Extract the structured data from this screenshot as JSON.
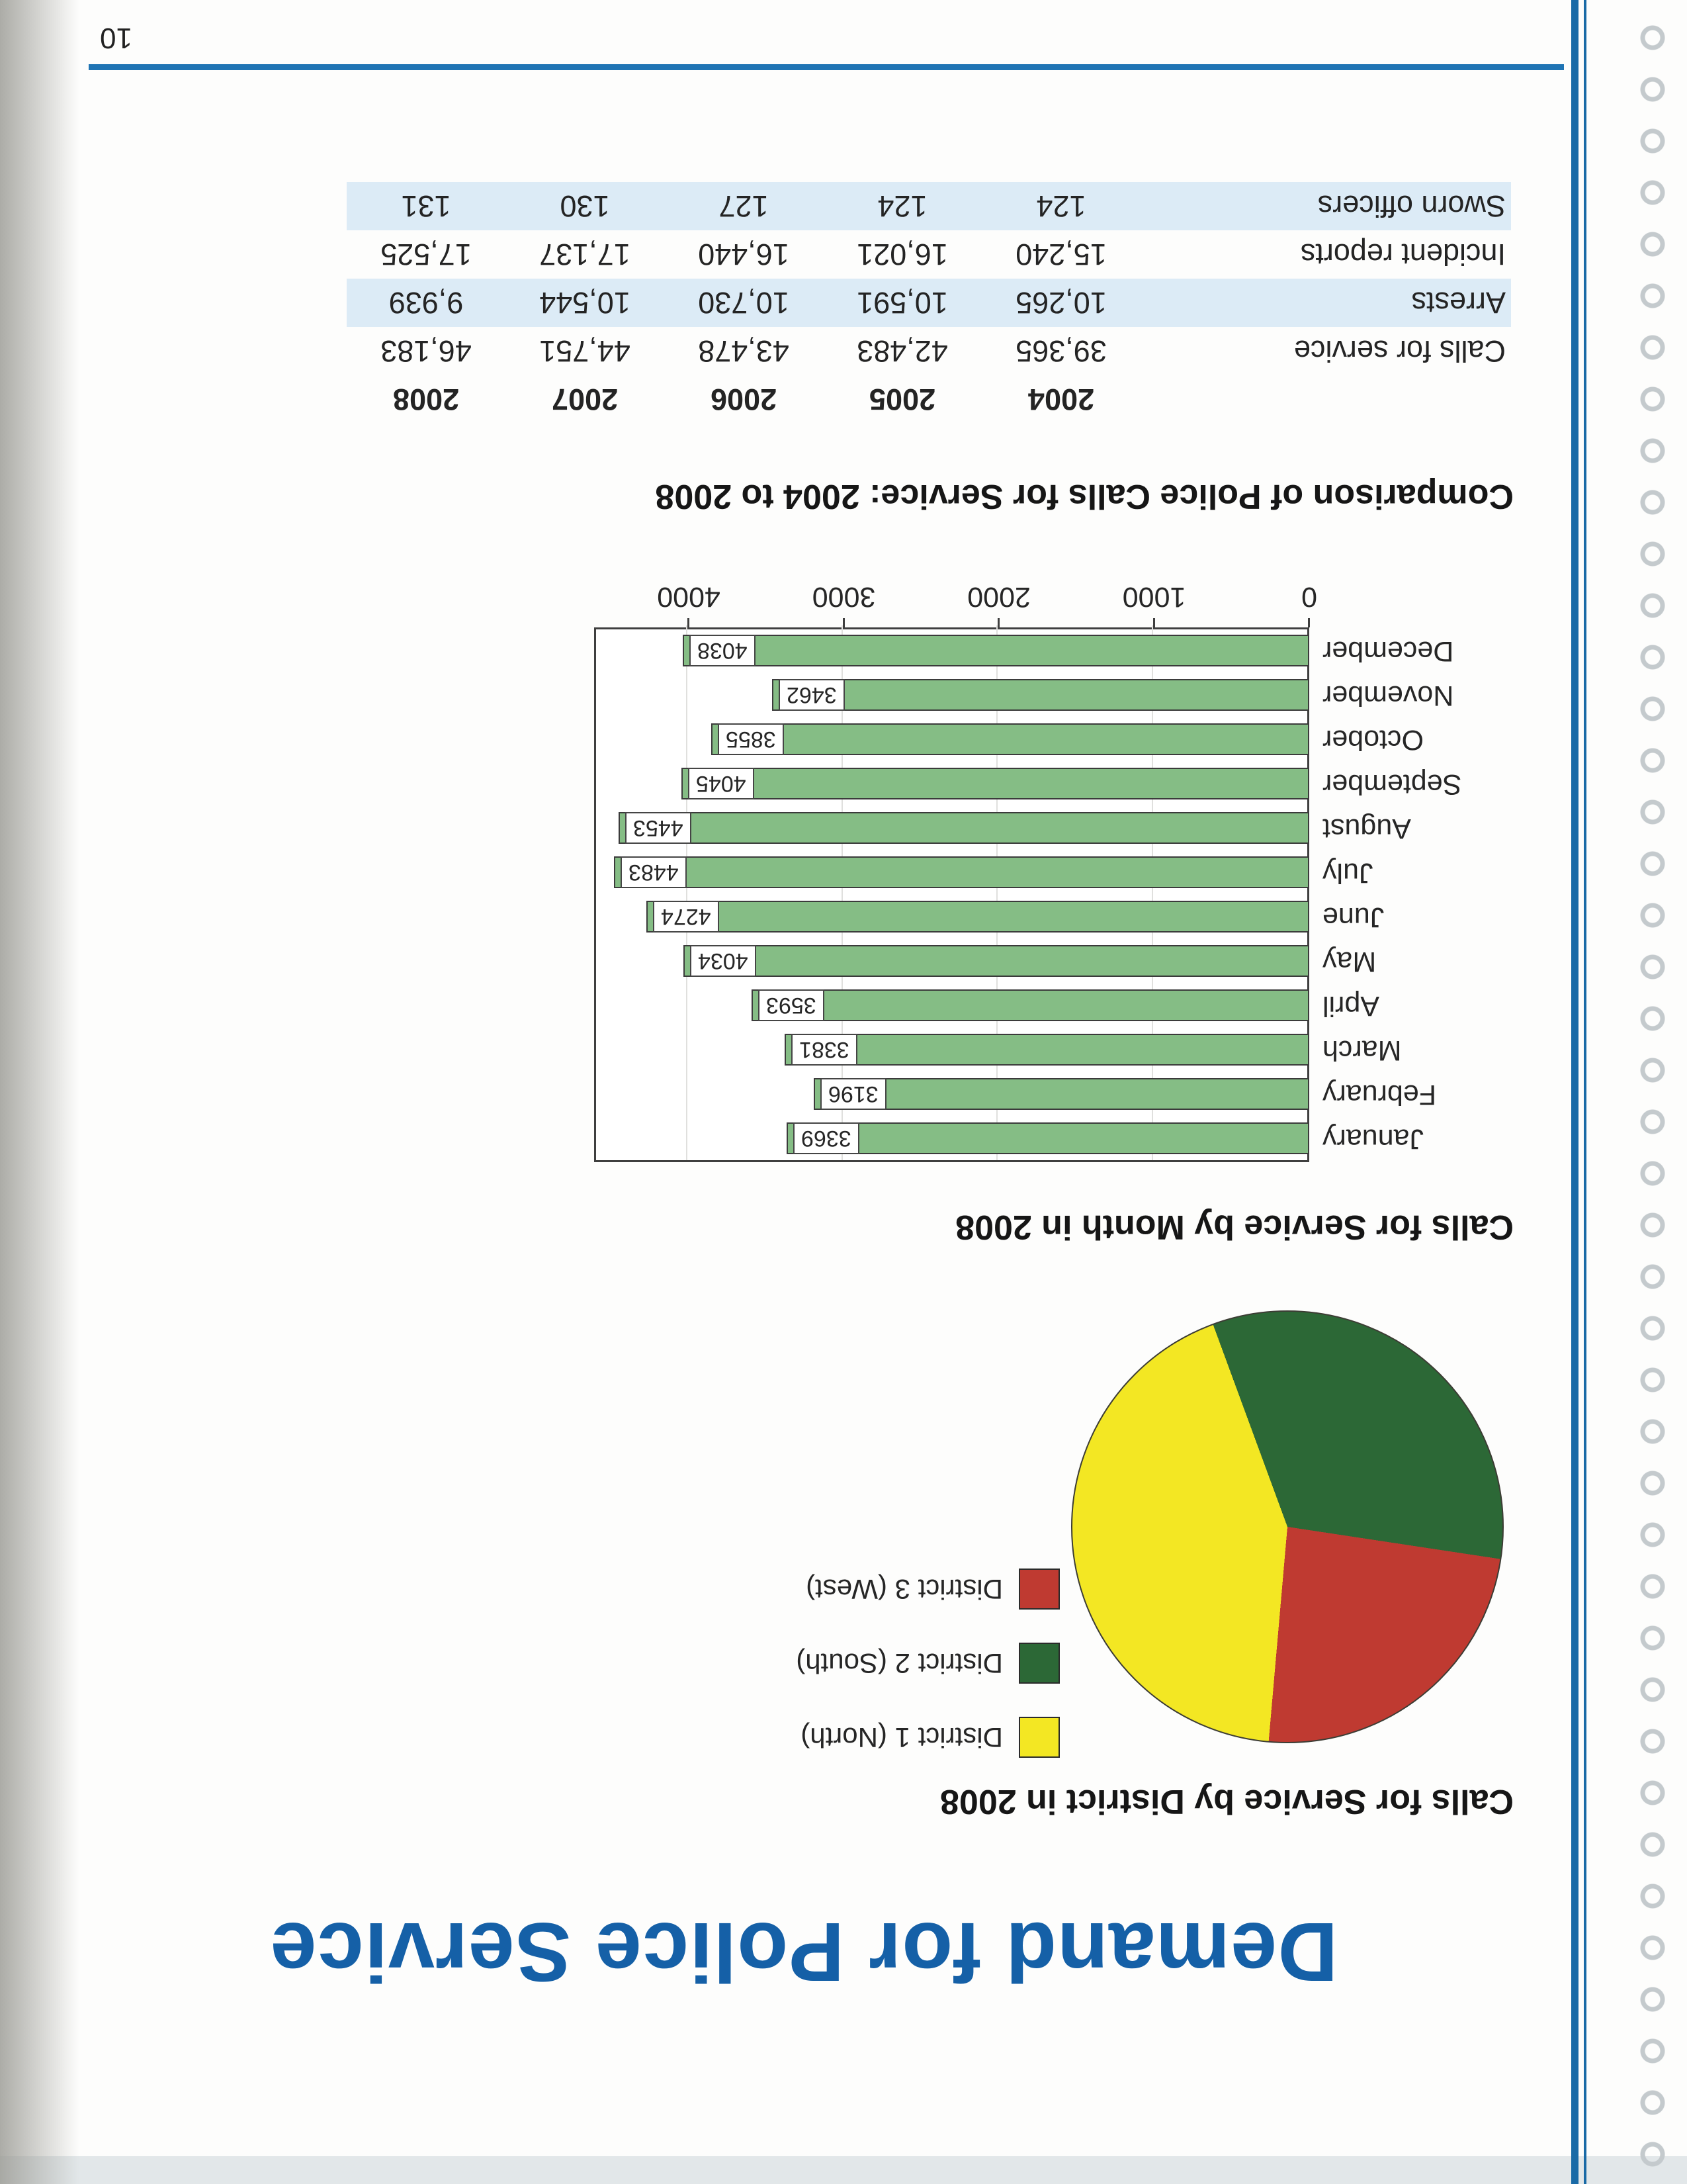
{
  "page_number": "10",
  "title": "Demand for Police Service",
  "accent_colors": {
    "title_blue": "#1560a7",
    "rule_blue": "#1f74b4",
    "table_band_blue": "#dcebf6",
    "bar_green": "#85bd85"
  },
  "chart_data": [
    {
      "type": "pie",
      "title": "Calls for Service by District in 2008",
      "labels": [
        "District 1 (North)",
        "District 2 (South)",
        "District 3 (West)"
      ],
      "colors": [
        "#f3e723",
        "#2c6836",
        "#bf3a31"
      ],
      "values_percent_est": [
        43,
        33,
        24
      ],
      "start_angle_deg": 5,
      "legend_position": "right"
    },
    {
      "type": "bar",
      "orientation": "horizontal",
      "title": "Calls for Service by Month in 2008",
      "categories": [
        "January",
        "February",
        "March",
        "April",
        "May",
        "June",
        "July",
        "August",
        "September",
        "October",
        "November",
        "December"
      ],
      "values": [
        3369,
        3196,
        3381,
        3593,
        4034,
        4274,
        4483,
        4453,
        4045,
        3855,
        3462,
        4038
      ],
      "ticks": [
        0,
        1000,
        2000,
        3000,
        4000
      ],
      "xlim": [
        0,
        4610
      ],
      "bar_color": "#85bd85",
      "grid": true,
      "value_labels": true
    },
    {
      "type": "table",
      "title": "Comparison of Police Calls for Service: 2004 to 2008",
      "columns": [
        "",
        "2004",
        "2005",
        "2006",
        "2007",
        "2008"
      ],
      "rows": [
        [
          "Calls for service",
          "39,365",
          "42,483",
          "43,478",
          "44,751",
          "46,183"
        ],
        [
          "Arrests",
          "10,265",
          "10,591",
          "10,730",
          "10,544",
          "9,939"
        ],
        [
          "Incident reports",
          "15,240",
          "16,021",
          "16,440",
          "17,137",
          "17,525"
        ],
        [
          "Sworn officers",
          "124",
          "124",
          "127",
          "130",
          "131"
        ]
      ]
    }
  ]
}
